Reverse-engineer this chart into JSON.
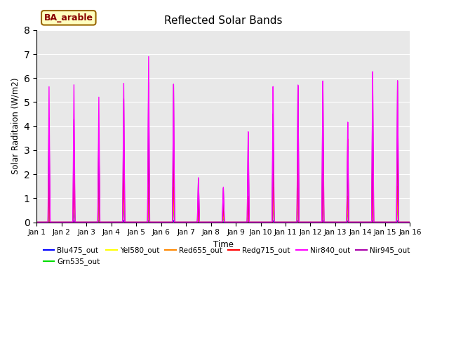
{
  "title": "Reflected Solar Bands",
  "xlabel": "Time",
  "ylabel": "Solar Raditaion (W/m2)",
  "ylim": [
    0,
    8.0
  ],
  "xlim": [
    0,
    15
  ],
  "yticks": [
    0.0,
    1.0,
    2.0,
    3.0,
    4.0,
    5.0,
    6.0,
    7.0,
    8.0
  ],
  "xtick_labels": [
    "Jan 1",
    "Jan 2",
    "Jan 3",
    "Jan 4",
    "Jan 5",
    "Jan 6",
    "Jan 7",
    "Jan 8",
    "Jan 9",
    "Jan 10",
    "Jan 11",
    "Jan 12",
    "Jan 13",
    "Jan 14",
    "Jan 15",
    "Jan 16"
  ],
  "legend_label": "BA_arable",
  "series": {
    "Blu475_out": {
      "color": "#0000ff",
      "lw": 0.8
    },
    "Grn535_out": {
      "color": "#00dd00",
      "lw": 0.8
    },
    "Yel580_out": {
      "color": "#ffff00",
      "lw": 0.8
    },
    "Red655_out": {
      "color": "#ff8800",
      "lw": 0.8
    },
    "Redg715_out": {
      "color": "#ff0000",
      "lw": 1.0
    },
    "Nir840_out": {
      "color": "#ff00ff",
      "lw": 1.0
    },
    "Nir945_out": {
      "color": "#aa00aa",
      "lw": 1.0
    }
  },
  "background_color": "#e8e8e8",
  "box_facecolor": "#ffffc0",
  "box_edgecolor": "#996600",
  "text_color": "#880000",
  "nir840_peaks": [
    5.65,
    5.75,
    5.25,
    5.85,
    7.0,
    5.85,
    1.9,
    1.5,
    3.85,
    5.75,
    5.8,
    5.95,
    4.2,
    6.3,
    5.9
  ],
  "nir945_peaks": [
    4.35,
    4.3,
    3.8,
    5.2,
    5.9,
    5.85,
    1.85,
    1.45,
    3.4,
    4.6,
    5.75,
    5.8,
    3.2,
    5.9,
    5.9
  ],
  "redg715_peaks": [
    2.0,
    2.0,
    3.45,
    3.25,
    3.55,
    3.55,
    0.95,
    0.9,
    1.1,
    3.45,
    3.45,
    3.45,
    3.5,
    3.55,
    3.55
  ],
  "red655_peaks": [
    1.2,
    1.2,
    1.7,
    1.7,
    1.5,
    1.5,
    0.5,
    0.5,
    0.65,
    1.5,
    1.45,
    1.5,
    1.1,
    1.5,
    1.5
  ],
  "yel580_peaks": [
    0.8,
    0.9,
    1.25,
    1.25,
    1.1,
    1.1,
    0.35,
    0.35,
    0.4,
    1.1,
    1.1,
    1.1,
    0.8,
    1.1,
    1.1
  ],
  "grn535_peaks": [
    0.4,
    0.5,
    0.85,
    0.85,
    0.8,
    0.8,
    0.22,
    0.22,
    0.28,
    0.75,
    0.75,
    0.8,
    0.55,
    0.8,
    0.8
  ],
  "blu475_peaks": [
    0.05,
    0.05,
    0.07,
    0.07,
    0.07,
    0.07,
    0.02,
    0.02,
    0.03,
    0.06,
    0.06,
    0.06,
    0.05,
    0.06,
    0.06
  ]
}
